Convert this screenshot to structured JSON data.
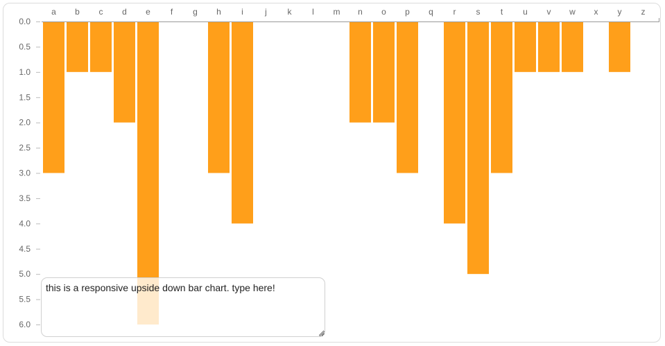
{
  "chart_data": {
    "type": "bar",
    "orientation": "inverted",
    "categories": [
      "a",
      "b",
      "c",
      "d",
      "e",
      "f",
      "g",
      "h",
      "i",
      "j",
      "k",
      "l",
      "m",
      "n",
      "o",
      "p",
      "q",
      "r",
      "s",
      "t",
      "u",
      "v",
      "w",
      "x",
      "y",
      "z"
    ],
    "values": [
      3,
      1,
      1,
      2,
      6,
      0,
      0,
      3,
      4,
      0,
      0,
      0,
      0,
      2,
      2,
      3,
      0,
      4,
      5,
      3,
      1,
      1,
      1,
      0,
      1,
      0
    ],
    "ylim": [
      0,
      6
    ],
    "yticks": [
      "0.0",
      "0.5",
      "1.0",
      "1.5",
      "2.0",
      "2.5",
      "3.0",
      "3.5",
      "4.0",
      "4.5",
      "5.0",
      "5.5",
      "6.0"
    ],
    "grid": false,
    "bar_color": "#ff9f1a",
    "faded_bar_color": "#fde9cf"
  },
  "textarea": {
    "value": "this is a responsive upside down bar chart. type here!"
  }
}
